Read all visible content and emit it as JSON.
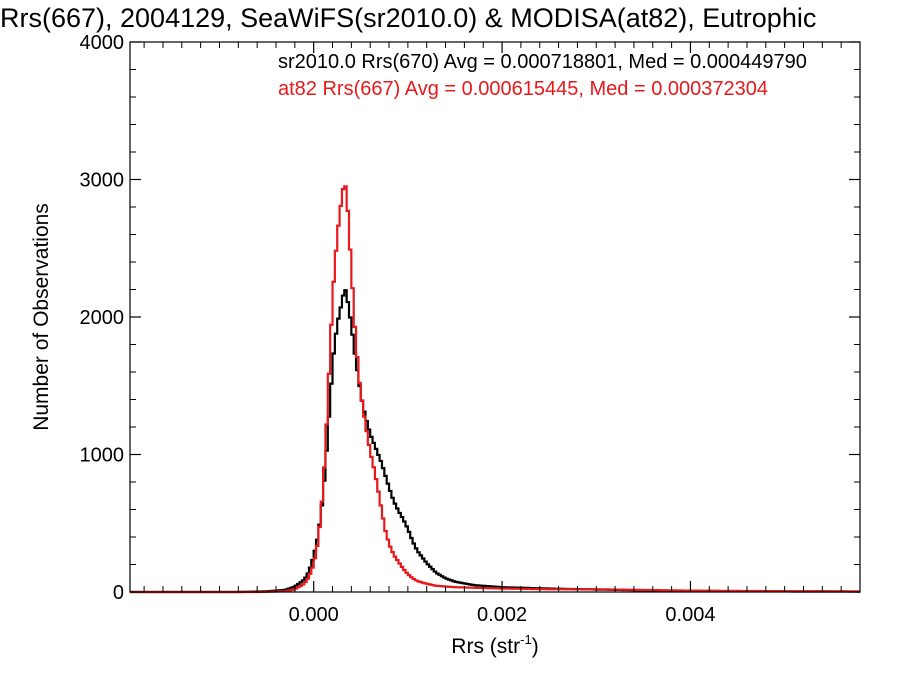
{
  "chart_data": {
    "type": "line",
    "title": "Rrs(667), 2004129, SeaWiFS(sr2010.0) & MODISA(at82), Eutrophic",
    "xlabel": "Rrs (str",
    "xlabel_sup": "-1",
    "xlabel_close": ")",
    "ylabel": "Number of Observations",
    "xlim": [
      -0.00195,
      0.0058
    ],
    "ylim": [
      0,
      4000
    ],
    "xticks": [
      0.0,
      0.002,
      0.004
    ],
    "xtick_labels": [
      "0.000",
      "0.002",
      "0.004"
    ],
    "yticks": [
      0,
      1000,
      2000,
      3000,
      4000
    ],
    "ytick_labels": [
      "0",
      "1000",
      "2000",
      "3000",
      "4000"
    ],
    "grid": false,
    "legend_placement": "top-right",
    "series": [
      {
        "name": "sr2010.0 Rrs(670) Avg = 0.000718801, Med = 0.000449790",
        "color": "#000000",
        "step": true,
        "points": [
          [
            -0.00195,
            0
          ],
          [
            -0.0008,
            0
          ],
          [
            -0.0005,
            5
          ],
          [
            -0.0003,
            15
          ],
          [
            -0.0002,
            40
          ],
          [
            -0.0001,
            90
          ],
          [
            -5e-05,
            150
          ],
          [
            0.0,
            260
          ],
          [
            5e-05,
            420
          ],
          [
            0.0001,
            700
          ],
          [
            0.00014,
            1050
          ],
          [
            0.00018,
            1450
          ],
          [
            0.00022,
            1800
          ],
          [
            0.00026,
            1980
          ],
          [
            0.0003,
            2110
          ],
          [
            0.00033,
            2220
          ],
          [
            0.00036,
            2120
          ],
          [
            0.0004,
            1940
          ],
          [
            0.00044,
            1720
          ],
          [
            0.00048,
            1530
          ],
          [
            0.00052,
            1360
          ],
          [
            0.00056,
            1250
          ],
          [
            0.0006,
            1150
          ],
          [
            0.00064,
            1080
          ],
          [
            0.00068,
            1010
          ],
          [
            0.00072,
            940
          ],
          [
            0.00076,
            850
          ],
          [
            0.0008,
            760
          ],
          [
            0.00085,
            660
          ],
          [
            0.0009,
            590
          ],
          [
            0.00095,
            530
          ],
          [
            0.001,
            460
          ],
          [
            0.00105,
            370
          ],
          [
            0.0011,
            300
          ],
          [
            0.0012,
            210
          ],
          [
            0.0013,
            140
          ],
          [
            0.0014,
            100
          ],
          [
            0.0015,
            75
          ],
          [
            0.0017,
            50
          ],
          [
            0.002,
            35
          ],
          [
            0.0025,
            25
          ],
          [
            0.003,
            18
          ],
          [
            0.0035,
            12
          ],
          [
            0.004,
            8
          ],
          [
            0.0045,
            6
          ],
          [
            0.005,
            4
          ],
          [
            0.0058,
            3
          ]
        ]
      },
      {
        "name": "at82 Rrs(667) Avg = 0.000615445, Med = 0.000372304",
        "color": "#e8191b",
        "step": true,
        "points": [
          [
            -0.00195,
            0
          ],
          [
            -0.0006,
            0
          ],
          [
            -0.0003,
            5
          ],
          [
            -0.0002,
            20
          ],
          [
            -0.0001,
            60
          ],
          [
            -5e-05,
            110
          ],
          [
            0.0,
            200
          ],
          [
            5e-05,
            380
          ],
          [
            0.0001,
            750
          ],
          [
            0.00014,
            1250
          ],
          [
            0.00018,
            1850
          ],
          [
            0.00022,
            2350
          ],
          [
            0.00026,
            2650
          ],
          [
            0.0003,
            2880
          ],
          [
            0.00033,
            3000
          ],
          [
            0.00036,
            2800
          ],
          [
            0.0004,
            2350
          ],
          [
            0.00044,
            1900
          ],
          [
            0.00048,
            1560
          ],
          [
            0.00052,
            1350
          ],
          [
            0.00056,
            1180
          ],
          [
            0.0006,
            1020
          ],
          [
            0.00064,
            900
          ],
          [
            0.00068,
            760
          ],
          [
            0.00072,
            600
          ],
          [
            0.00076,
            450
          ],
          [
            0.0008,
            350
          ],
          [
            0.00085,
            270
          ],
          [
            0.0009,
            220
          ],
          [
            0.00095,
            170
          ],
          [
            0.001,
            130
          ],
          [
            0.00105,
            100
          ],
          [
            0.0011,
            80
          ],
          [
            0.0012,
            60
          ],
          [
            0.0013,
            45
          ],
          [
            0.0015,
            35
          ],
          [
            0.002,
            25
          ],
          [
            0.0025,
            20
          ],
          [
            0.003,
            20
          ],
          [
            0.0035,
            15
          ],
          [
            0.004,
            10
          ],
          [
            0.0045,
            8
          ],
          [
            0.005,
            6
          ],
          [
            0.0058,
            5
          ]
        ]
      }
    ]
  }
}
